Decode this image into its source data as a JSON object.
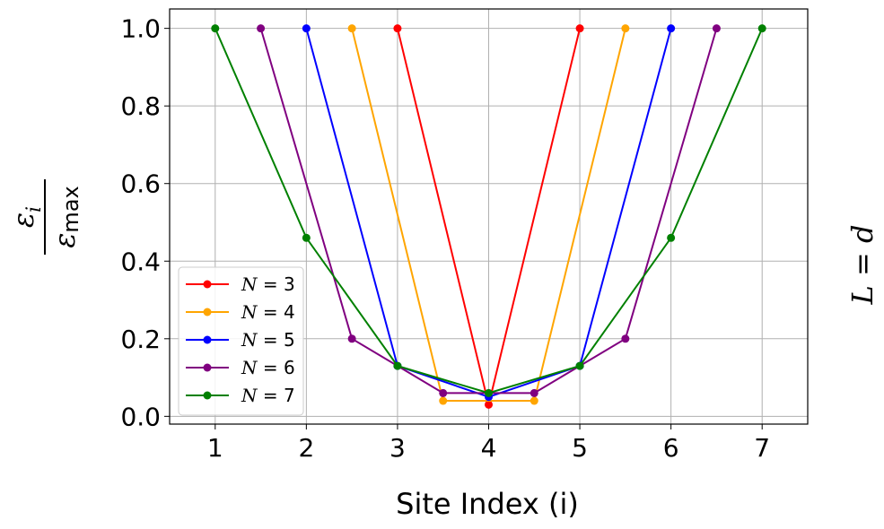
{
  "chart_data": {
    "type": "line",
    "xlabel": "Site Index (i)",
    "ylabel": {
      "numerator": "ε",
      "numerator_sub": "i",
      "denominator": "ε",
      "denominator_sub": "max"
    },
    "right_label": "L = d",
    "xlim": [
      0.5,
      7.5
    ],
    "ylim": [
      -0.02,
      1.05
    ],
    "xticks": [
      1,
      2,
      3,
      4,
      5,
      6,
      7
    ],
    "yticks": [
      0.0,
      0.2,
      0.4,
      0.6,
      0.8,
      1.0
    ],
    "ytick_labels": [
      "0.0",
      "0.2",
      "0.4",
      "0.6",
      "0.8",
      "1.0"
    ],
    "grid": true,
    "legend_position": "lower-left",
    "series": [
      {
        "name": "N = 3",
        "legend_var": "N",
        "legend_eq": " = 3",
        "color": "#ff0000",
        "x": [
          3,
          4,
          5
        ],
        "y": [
          1.0,
          0.03,
          1.0
        ]
      },
      {
        "name": "N = 4",
        "legend_var": "N",
        "legend_eq": " = 4",
        "color": "#ffa500",
        "x": [
          2.5,
          3.5,
          4.5,
          5.5
        ],
        "y": [
          1.0,
          0.04,
          0.04,
          1.0
        ]
      },
      {
        "name": "N = 5",
        "legend_var": "N",
        "legend_eq": " = 5",
        "color": "#0000ff",
        "x": [
          2,
          3,
          4,
          5,
          6
        ],
        "y": [
          1.0,
          0.13,
          0.05,
          0.13,
          1.0
        ]
      },
      {
        "name": "N = 6",
        "legend_var": "N",
        "legend_eq": " = 6",
        "color": "#800080",
        "x": [
          1.5,
          2.5,
          3.5,
          4.5,
          5.5,
          6.5
        ],
        "y": [
          1.0,
          0.2,
          0.06,
          0.06,
          0.2,
          1.0
        ]
      },
      {
        "name": "N = 7",
        "legend_var": "N",
        "legend_eq": " = 7",
        "color": "#008000",
        "x": [
          1,
          2,
          3,
          4,
          5,
          6,
          7
        ],
        "y": [
          1.0,
          0.46,
          0.13,
          0.06,
          0.13,
          0.46,
          1.0
        ]
      }
    ]
  }
}
